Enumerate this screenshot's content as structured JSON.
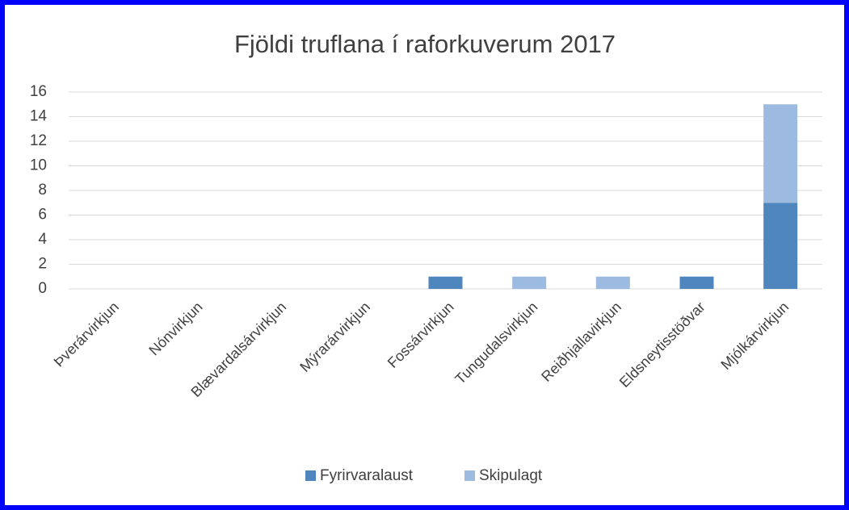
{
  "chart_data": {
    "type": "stacked_bar",
    "title": "Fjöldi truflana í raforkuverum 2017",
    "categories": [
      "Þverárvirkjun",
      "Nónvirkjun",
      "Blævardalsárvirkjun",
      "Mýrarárvirkjun",
      "Fossárvirkjun",
      "Tungudalsvirkjun",
      "Reiðhjallavirkjun",
      "Eldsneytisstöðvar",
      "Mjólkárvirkjun"
    ],
    "series": [
      {
        "name": "Fyrirvaralaust",
        "color": "#4f86bd",
        "values": [
          0,
          0,
          0,
          0,
          1,
          0,
          0,
          1,
          7
        ]
      },
      {
        "name": "Skipulagt",
        "color": "#9dbbe0",
        "values": [
          0,
          0,
          0,
          0,
          0,
          1,
          1,
          0,
          8
        ]
      }
    ],
    "ylim": [
      0,
      16
    ],
    "yticks": [
      0,
      2,
      4,
      6,
      8,
      10,
      12,
      14,
      16
    ],
    "grid": true,
    "legend": "bottom"
  }
}
